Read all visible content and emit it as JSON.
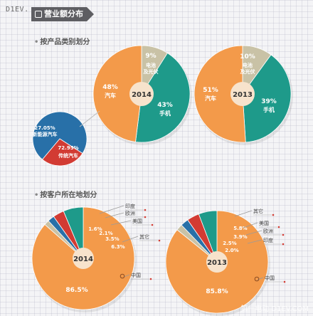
{
  "watermark_top": "D1EV.",
  "watermark_bottom": "第一电动 D1EV.COM",
  "banner": "营业额分布",
  "sections": [
    "按产品类别划分",
    "按客户所在地划分"
  ],
  "colors": {
    "orange": "#f39a4a",
    "teal": "#1e9a8a",
    "gray": "#c9c2a6",
    "red": "#d23b33",
    "blue": "#2870a8",
    "center": "#f7e3cc"
  },
  "chart_data": [
    {
      "type": "pie",
      "title": "2014",
      "slices": [
        {
          "label": "电池及光伏",
          "value": 9,
          "value_label": "9%",
          "color": "gray"
        },
        {
          "label": "手机",
          "value": 43,
          "value_label": "43%",
          "color": "teal"
        },
        {
          "label": "汽车",
          "value": 48,
          "value_label": "48%",
          "color": "orange"
        }
      ]
    },
    {
      "type": "pie",
      "title": "2013",
      "slices": [
        {
          "label": "电池及光伏",
          "value": 10,
          "value_label": "10%",
          "color": "gray"
        },
        {
          "label": "手机",
          "value": 39,
          "value_label": "39%",
          "color": "teal"
        },
        {
          "label": "汽车",
          "value": 51,
          "value_label": "51%",
          "color": "orange"
        }
      ]
    },
    {
      "type": "pie",
      "title": "",
      "slices": [
        {
          "label": "传统汽车",
          "value": 72.95,
          "value_label": "72.95%",
          "color": "blue"
        },
        {
          "label": "新能源汽车",
          "value": 27.05,
          "value_label": "27.05%",
          "color": "red"
        }
      ]
    },
    {
      "type": "pie",
      "title": "2014",
      "slices": [
        {
          "label": "中国",
          "value": 86.5,
          "value_label": "86.5%",
          "color": "orange"
        },
        {
          "label": "印度",
          "value": 1.6,
          "value_label": "1.6%",
          "color": "gray"
        },
        {
          "label": "欧洲",
          "value": 2.1,
          "value_label": "2.1%",
          "color": "blue"
        },
        {
          "label": "美国",
          "value": 3.5,
          "value_label": "3.5%",
          "color": "red"
        },
        {
          "label": "其它",
          "value": 6.3,
          "value_label": "6.3%",
          "color": "teal"
        }
      ]
    },
    {
      "type": "pie",
      "title": "2013",
      "slices": [
        {
          "label": "中国",
          "value": 85.8,
          "value_label": "85.8%",
          "color": "orange"
        },
        {
          "label": "印度",
          "value": 2.0,
          "value_label": "2.0%",
          "color": "gray"
        },
        {
          "label": "欧洲",
          "value": 2.5,
          "value_label": "2.5%",
          "color": "blue"
        },
        {
          "label": "美国",
          "value": 3.9,
          "value_label": "3.9%",
          "color": "red"
        },
        {
          "label": "其它",
          "value": 5.8,
          "value_label": "5.8%",
          "color": "teal"
        }
      ]
    }
  ]
}
